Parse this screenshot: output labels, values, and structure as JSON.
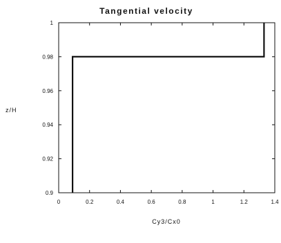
{
  "chart_data": {
    "type": "line",
    "title": "Tangential velocity",
    "xlabel": "Cy3/Cx0",
    "ylabel": "z/H",
    "xlim": [
      0,
      1.4
    ],
    "ylim": [
      0.9,
      1.0
    ],
    "x_ticks": [
      "0",
      "0.2",
      "0.4",
      "0.6",
      "0.8",
      "1",
      "1.2",
      "1.4"
    ],
    "y_ticks": [
      "0.9",
      "0.92",
      "0.94",
      "0.96",
      "0.98",
      "1"
    ],
    "grid": false,
    "legend": "none",
    "series": [
      {
        "color": "#111111",
        "points": [
          {
            "x": 0.09,
            "y": 0.9
          },
          {
            "x": 0.09,
            "y": 0.98
          },
          {
            "x": 1.33,
            "y": 0.98
          },
          {
            "x": 1.33,
            "y": 1.0
          }
        ]
      }
    ]
  }
}
